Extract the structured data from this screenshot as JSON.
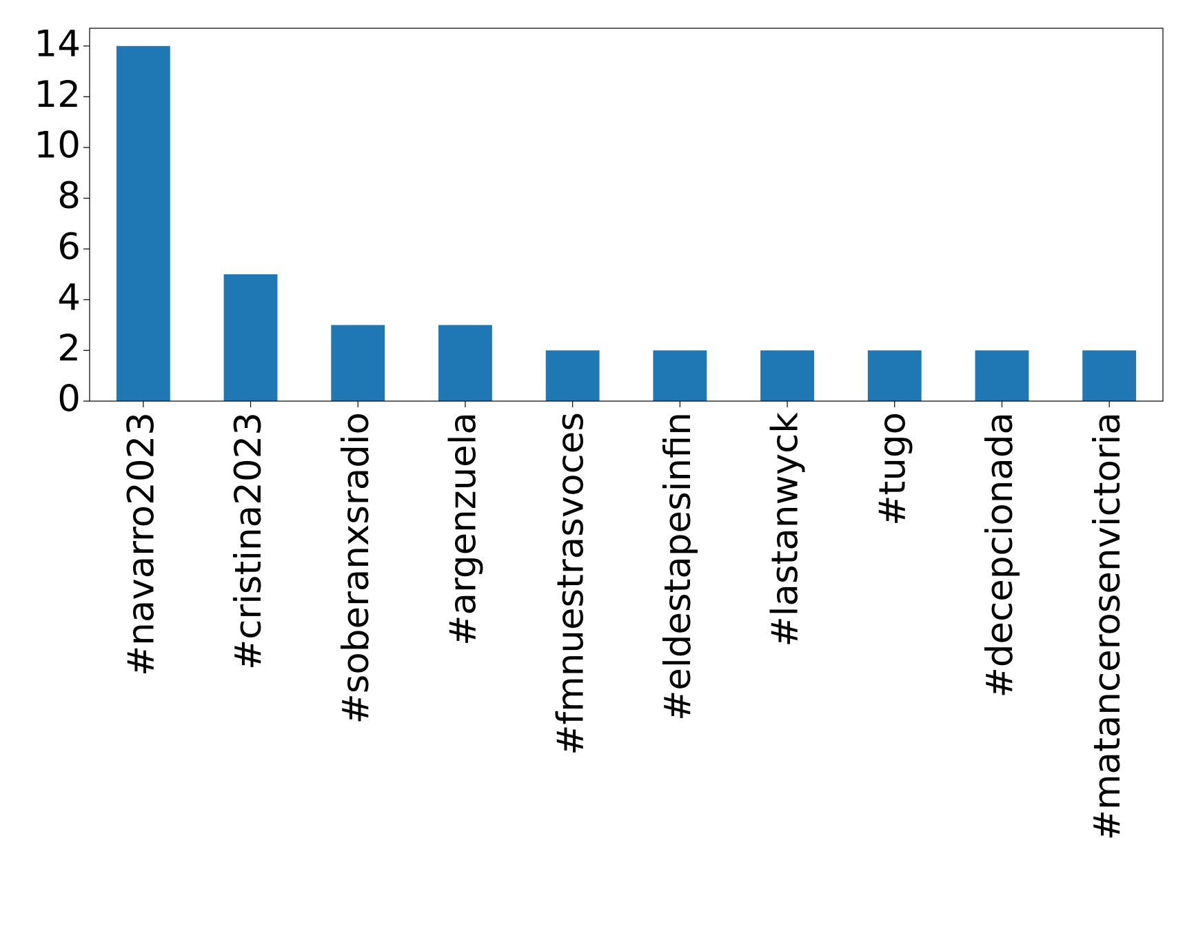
{
  "chart_data": {
    "type": "bar",
    "categories": [
      "#navarro2023",
      "#cristina2023",
      "#soberanxsradio",
      "#argenzuela",
      "#fmnuestrasvoces",
      "#eldestapesinfin",
      "#lastanwyck",
      "#tugo",
      "#decepcionada",
      "#matancerosenvictoria"
    ],
    "values": [
      14,
      5,
      3,
      3,
      2,
      2,
      2,
      2,
      2,
      2
    ],
    "color": "#1f77b4",
    "ylim": [
      0,
      14.7
    ],
    "yticks": [
      0,
      2,
      4,
      6,
      8,
      10,
      12,
      14
    ],
    "grid": false
  }
}
